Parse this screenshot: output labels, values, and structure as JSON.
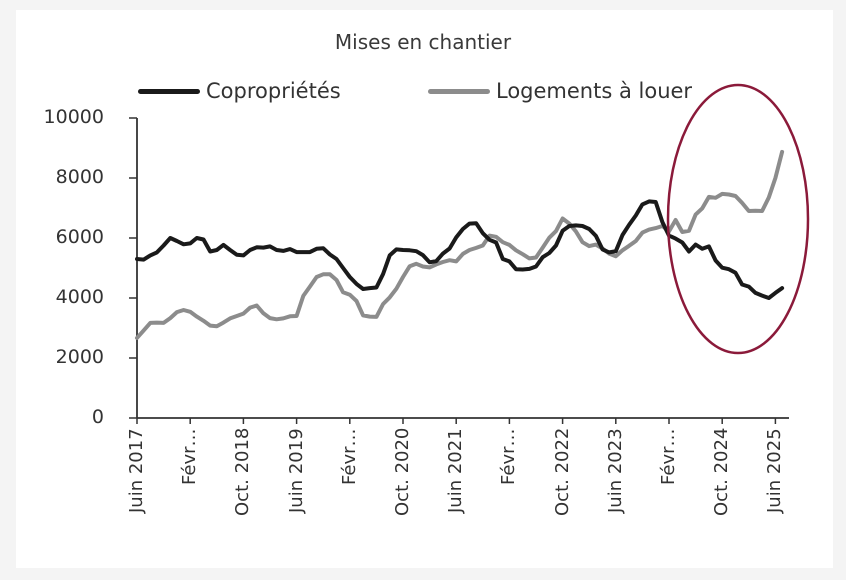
{
  "chart_data": {
    "type": "line",
    "title": "Mises en chantier",
    "xlabel": "",
    "ylabel": "",
    "ylim": [
      0,
      10000
    ],
    "yticks": [
      0,
      2000,
      4000,
      6000,
      8000,
      10000
    ],
    "xtick_labels": [
      "Juin 2017",
      "Févr…",
      "Oct. 2018",
      "Juin 2019",
      "Févr…",
      "Oct. 2020",
      "Juin 2021",
      "Févr…",
      "Oct. 2022",
      "Juin 2023",
      "Févr…",
      "Oct. 2024",
      "Juin 2025"
    ],
    "x_start": "Juin 2017",
    "x_frequency": "monthly",
    "grid": false,
    "legend_position": "top",
    "annotation": {
      "type": "ellipse",
      "color": "#8b1a3a",
      "highlight": "Févr. 2024 – Juin 2025"
    },
    "series": [
      {
        "name": "Copropriétés",
        "color": "#1a1a1a",
        "values": [
          5300,
          5280,
          5420,
          5520,
          5750,
          6000,
          5900,
          5790,
          5820,
          6000,
          5950,
          5550,
          5600,
          5770,
          5600,
          5440,
          5420,
          5600,
          5690,
          5680,
          5720,
          5600,
          5570,
          5630,
          5530,
          5530,
          5530,
          5640,
          5660,
          5450,
          5300,
          5000,
          4700,
          4470,
          4300,
          4330,
          4350,
          4800,
          5420,
          5620,
          5600,
          5590,
          5560,
          5430,
          5190,
          5230,
          5480,
          5650,
          6020,
          6300,
          6480,
          6490,
          6160,
          5940,
          5850,
          5300,
          5220,
          4960,
          4950,
          4970,
          5050,
          5360,
          5500,
          5750,
          6240,
          6400,
          6420,
          6400,
          6300,
          6070,
          5620,
          5520,
          5560,
          6100,
          6440,
          6750,
          7120,
          7220,
          7200,
          6530,
          6080,
          5980,
          5850,
          5550,
          5780,
          5640,
          5720,
          5250,
          5010,
          4960,
          4840,
          4450,
          4380,
          4170,
          4080,
          4000,
          4170,
          4330
        ]
      },
      {
        "name": "Logements à louer",
        "color": "#8c8c8c",
        "values": [
          2670,
          2920,
          3170,
          3180,
          3170,
          3330,
          3530,
          3600,
          3540,
          3380,
          3240,
          3080,
          3060,
          3180,
          3320,
          3400,
          3480,
          3680,
          3750,
          3490,
          3330,
          3290,
          3320,
          3390,
          3400,
          4070,
          4380,
          4700,
          4790,
          4790,
          4600,
          4190,
          4110,
          3900,
          3420,
          3380,
          3370,
          3800,
          4020,
          4310,
          4700,
          5060,
          5140,
          5050,
          5020,
          5120,
          5200,
          5260,
          5220,
          5470,
          5600,
          5670,
          5750,
          6080,
          6040,
          5860,
          5770,
          5590,
          5460,
          5320,
          5350,
          5680,
          6010,
          6230,
          6650,
          6480,
          6220,
          5860,
          5730,
          5780,
          5650,
          5480,
          5390,
          5590,
          5740,
          5900,
          6180,
          6280,
          6330,
          6400,
          6220,
          6600,
          6200,
          6240,
          6780,
          6990,
          7370,
          7340,
          7470,
          7450,
          7400,
          7170,
          6900,
          6910,
          6900,
          7350,
          8000,
          8870
        ]
      }
    ]
  },
  "colors": {
    "background": "#f4f4f4",
    "panel": "#ffffff",
    "axis": "#333333",
    "annotation": "#8b1a3a"
  }
}
